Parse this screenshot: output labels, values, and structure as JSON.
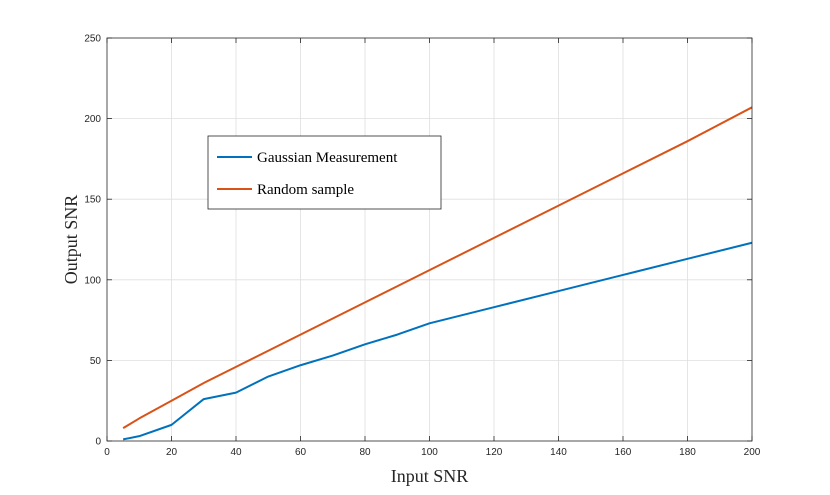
{
  "chart_data": {
    "type": "line",
    "title": "",
    "xlabel": "Input SNR",
    "ylabel": "Output SNR",
    "xlim": [
      0,
      200
    ],
    "ylim": [
      0,
      250
    ],
    "xticks": [
      0,
      20,
      40,
      60,
      80,
      100,
      120,
      140,
      160,
      180,
      200
    ],
    "yticks": [
      0,
      50,
      100,
      150,
      200,
      250
    ],
    "grid": true,
    "legend_position": "upper-left",
    "series": [
      {
        "name": "Gaussian Measurement",
        "color": "#0072BD",
        "x": [
          5,
          10,
          20,
          30,
          40,
          50,
          60,
          70,
          80,
          90,
          100,
          120,
          140,
          160,
          180,
          200
        ],
        "y": [
          1,
          3,
          10,
          26,
          30,
          40,
          47,
          53,
          60,
          66,
          73,
          83,
          93,
          103,
          113,
          123
        ]
      },
      {
        "name": "Random sample",
        "color": "#D95319",
        "x": [
          5,
          10,
          20,
          30,
          40,
          50,
          60,
          70,
          80,
          90,
          100,
          120,
          140,
          160,
          180,
          200
        ],
        "y": [
          8,
          14,
          25,
          36,
          46,
          56,
          66,
          76,
          86,
          96,
          106,
          126,
          146,
          166,
          186,
          207
        ]
      }
    ]
  }
}
